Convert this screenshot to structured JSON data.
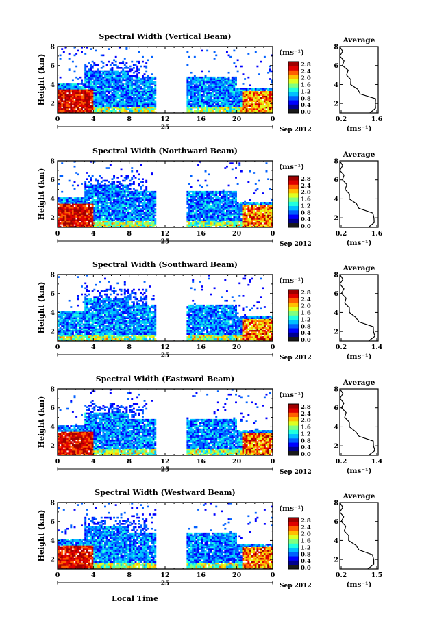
{
  "common": {
    "ylabel": "Height (km)",
    "x_ticks": [
      "0",
      "4",
      "8",
      "12",
      "16",
      "20",
      "0"
    ],
    "y_ticks": [
      "2",
      "4",
      "6",
      "8"
    ],
    "day": "25",
    "date": "Sep 2012",
    "unit_label": "(ms⁻¹)",
    "avg_title": "Average",
    "avg_ylim": [
      1,
      8
    ],
    "xlabel": "Local Time",
    "colors": [
      "#1a1a1a",
      "#00008f",
      "#0000ff",
      "#0060ff",
      "#00c0ff",
      "#20ffdf",
      "#80ff80",
      "#dfff20",
      "#ffc000",
      "#ff6000",
      "#e00000",
      "#9f0000"
    ]
  },
  "chart_data": [
    {
      "type": "heatmap",
      "title": "Spectral Width (Vertical Beam)",
      "colorbar_ticks": [
        "2.8",
        "2.4",
        "2.0",
        "1.6",
        "1.2",
        "0.8",
        "0.4",
        "0.0"
      ],
      "avg_xticks": [
        "0.2",
        "1.6"
      ],
      "avg_xlim": [
        0.2,
        1.6
      ],
      "avg_profile": {
        "height": [
          1.0,
          1.5,
          2.0,
          2.5,
          3.0,
          3.5,
          4.0,
          4.5,
          5.0,
          5.5,
          6.0,
          6.5,
          7.0,
          7.5,
          8.0
        ],
        "value": [
          1.35,
          1.45,
          1.55,
          1.45,
          1.0,
          0.8,
          0.65,
          0.55,
          0.5,
          0.45,
          0.35,
          0.3,
          0.25,
          0.25,
          0.25
        ]
      }
    },
    {
      "type": "heatmap",
      "title": "Spectral Width (Northward Beam)",
      "colorbar_ticks": [
        "2.8",
        "2.4",
        "2.0",
        "1.6",
        "1.2",
        "0.8",
        "0.4",
        "0.0"
      ],
      "avg_xticks": [
        "0.2",
        "1.6"
      ],
      "avg_xlim": [
        0.2,
        1.6
      ],
      "avg_profile": {
        "height": [
          1.0,
          1.5,
          2.0,
          2.5,
          3.0,
          3.5,
          4.0,
          4.5,
          5.0,
          5.5,
          6.0,
          6.5,
          7.0,
          7.5,
          8.0
        ],
        "value": [
          1.3,
          1.4,
          1.5,
          1.35,
          0.95,
          0.75,
          0.6,
          0.5,
          0.45,
          0.4,
          0.35,
          0.3,
          0.25,
          0.25,
          0.25
        ]
      }
    },
    {
      "type": "heatmap",
      "title": "Spectral Width (Southward Beam)",
      "colorbar_ticks": [
        "2.8",
        "2.4",
        "2.0",
        "1.6",
        "1.2",
        "0.8",
        "0.4",
        "0.0"
      ],
      "avg_xticks": [
        "0.2",
        "1.4"
      ],
      "avg_xlim": [
        0.2,
        1.4
      ],
      "avg_profile": {
        "height": [
          1.0,
          1.5,
          2.0,
          2.5,
          3.0,
          3.5,
          4.0,
          4.5,
          5.0,
          5.5,
          6.0,
          6.5,
          7.0,
          7.5,
          8.0
        ],
        "value": [
          1.15,
          1.25,
          1.3,
          1.2,
          0.85,
          0.65,
          0.55,
          0.45,
          0.4,
          0.35,
          0.3,
          0.28,
          0.25,
          0.25,
          0.25
        ]
      }
    },
    {
      "type": "heatmap",
      "title": "Spectral Width (Eastward Beam)",
      "colorbar_ticks": [
        "2.8",
        "2.4",
        "2.0",
        "1.6",
        "1.2",
        "0.8",
        "0.4",
        "0.0"
      ],
      "avg_xticks": [
        "0.2",
        "1.4"
      ],
      "avg_xlim": [
        0.2,
        1.4
      ],
      "avg_profile": {
        "height": [
          1.0,
          1.5,
          2.0,
          2.5,
          3.0,
          3.5,
          4.0,
          4.5,
          5.0,
          5.5,
          6.0,
          6.5,
          7.0,
          7.5,
          8.0
        ],
        "value": [
          1.15,
          1.25,
          1.3,
          1.2,
          0.85,
          0.65,
          0.55,
          0.45,
          0.4,
          0.35,
          0.3,
          0.28,
          0.25,
          0.25,
          0.25
        ]
      }
    },
    {
      "type": "heatmap",
      "title": "Spectral Width (Westward Beam)",
      "colorbar_ticks": [
        "2.8",
        "2.4",
        "2.0",
        "1.6",
        "1.2",
        "0.8",
        "0.4",
        "0.0"
      ],
      "avg_xticks": [
        "0.2",
        "1.5"
      ],
      "avg_xlim": [
        0.2,
        1.5
      ],
      "avg_profile": {
        "height": [
          1.0,
          1.5,
          2.0,
          2.5,
          3.0,
          3.5,
          4.0,
          4.5,
          5.0,
          5.5,
          6.0,
          6.5,
          7.0,
          7.5,
          8.0
        ],
        "value": [
          1.2,
          1.3,
          1.4,
          1.25,
          0.9,
          0.7,
          0.55,
          0.45,
          0.4,
          0.35,
          0.3,
          0.28,
          0.25,
          0.25,
          0.25
        ]
      }
    }
  ]
}
